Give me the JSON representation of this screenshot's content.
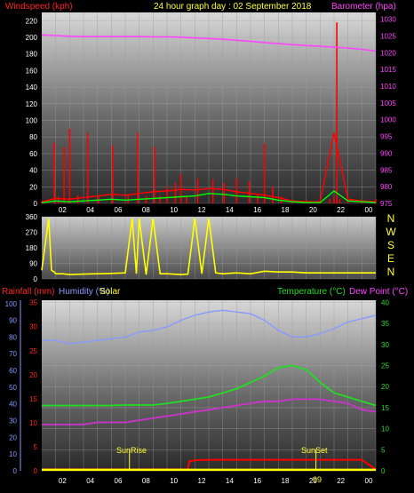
{
  "header": {
    "left_label": "Windspeed (kph)",
    "center_label": "24 hour graph day : 02 September 2018",
    "right_label": "Barometer (hpa)"
  },
  "bottom_header": {
    "rainfall_label": "Rainfall (mm)",
    "humidity_label": "Humidity (%)",
    "solar_label": "Solar",
    "temperature_label": "Temperature (°C)",
    "dewpoint_label": "Dew Point (°C)"
  },
  "compass_letters": [
    "N",
    "W",
    "S",
    "E",
    "N"
  ],
  "annotations": {
    "sunrise": "SunRise",
    "sunset": "SunSet",
    "sunset_mark": "99"
  },
  "colors": {
    "windspeed": "#ff0000",
    "gust": "#ff0000",
    "wind_avg": "#00ff00",
    "barometer": "#ff44ff",
    "direction": "#ffff00",
    "rain": "#ff0000",
    "humidity": "#8899ff",
    "solar": "#ffff00",
    "temperature": "#22dd22",
    "dewpoint": "#cc33cc"
  },
  "chart_data": [
    {
      "type": "line",
      "name": "wind-barometer",
      "x_ticks": [
        "02",
        "04",
        "06",
        "08",
        "10",
        "12",
        "14",
        "16",
        "18",
        "20",
        "22",
        "00"
      ],
      "y_left": {
        "label": "Windspeed (kph)",
        "ticks": [
          0,
          20,
          40,
          60,
          80,
          100,
          120,
          140,
          160,
          180,
          200,
          220
        ],
        "ylim": [
          0,
          230
        ]
      },
      "y_right": {
        "label": "Barometer (hpa)",
        "ticks": [
          975,
          980,
          985,
          990,
          995,
          1000,
          1005,
          1010,
          1015,
          1020,
          1025,
          1030
        ],
        "ylim": [
          975,
          1032
        ]
      },
      "series": [
        {
          "name": "Barometer",
          "x": [
            0,
            1,
            2,
            3,
            4,
            5,
            6,
            7,
            8,
            9,
            10,
            11,
            12,
            13,
            14,
            15,
            16,
            17,
            18,
            19,
            20,
            21,
            22,
            23,
            24
          ],
          "values": [
            1025.3,
            1025.1,
            1024.9,
            1024.8,
            1024.8,
            1024.8,
            1024.8,
            1024.8,
            1024.7,
            1024.7,
            1024.6,
            1024.4,
            1024.2,
            1024.0,
            1023.7,
            1023.4,
            1023.0,
            1022.7,
            1022.4,
            1022.1,
            1021.9,
            1021.6,
            1021.4,
            1021.0,
            1020.5
          ]
        },
        {
          "name": "Gust",
          "x": [
            0,
            0.9,
            1.2,
            1.6,
            2.0,
            2.6,
            3.3,
            4.1,
            5.1,
            6.2,
            6.9,
            7.5,
            8.1,
            8.5,
            9.0,
            9.6,
            10.0,
            10.4,
            11.2,
            12.3,
            13.1,
            14.0,
            14.9,
            15.5,
            16.0,
            16.6,
            17.2,
            18.0,
            19.0,
            20.0,
            20.7,
            21.0,
            21.2,
            21.4,
            22.0,
            23.0,
            24.0
          ],
          "values": [
            3,
            73,
            8,
            68,
            90,
            10,
            85,
            8,
            70,
            10,
            85,
            9,
            68,
            9,
            20,
            25,
            35,
            9,
            30,
            29,
            25,
            30,
            27,
            10,
            72,
            20,
            8,
            3,
            4,
            4,
            5,
            7,
            218,
            5,
            6,
            3,
            5
          ]
        },
        {
          "name": "Average",
          "x": [
            0,
            1,
            2,
            3,
            4,
            5,
            6,
            7,
            8,
            9,
            10,
            11,
            12,
            13,
            14,
            15,
            16,
            17,
            18,
            19,
            20,
            21,
            22,
            23,
            24
          ],
          "values": [
            1,
            3,
            2,
            3,
            4,
            5,
            4,
            5,
            6,
            7,
            8,
            9,
            12,
            11,
            9,
            8,
            7,
            4,
            2,
            1,
            1,
            15,
            3,
            2,
            1
          ]
        },
        {
          "name": "Windspeed",
          "x": [
            0,
            1,
            2,
            3,
            4,
            5,
            6,
            7,
            8,
            9,
            10,
            11,
            12,
            13,
            14,
            15,
            16,
            17,
            18,
            19,
            20,
            21,
            22,
            23,
            24
          ],
          "values": [
            2,
            6,
            5,
            7,
            9,
            11,
            10,
            12,
            14,
            15,
            17,
            16,
            18,
            17,
            14,
            12,
            10,
            7,
            3,
            2,
            2,
            85,
            5,
            3,
            2
          ]
        }
      ]
    },
    {
      "type": "scatter",
      "name": "wind-direction",
      "y_ticks": [
        0,
        90,
        180,
        270,
        360
      ],
      "ylim": [
        0,
        360
      ],
      "series": [
        {
          "name": "Direction",
          "x": [
            0,
            0.5,
            0.7,
            0.9,
            1.0,
            1.5,
            2.0,
            3.0,
            4.0,
            5.0,
            6.0,
            6.5,
            6.8,
            7.0,
            7.5,
            8.0,
            8.5,
            9.0,
            10.0,
            10.5,
            11.0,
            11.5,
            12.0,
            12.5,
            13.0,
            14.0,
            15.0,
            16.0,
            17.0,
            18.0,
            19.0,
            20.0,
            21.0,
            22.0,
            23.0,
            24.0
          ],
          "values": [
            50,
            350,
            50,
            40,
            30,
            30,
            25,
            28,
            30,
            32,
            35,
            350,
            30,
            350,
            25,
            350,
            30,
            30,
            25,
            28,
            350,
            30,
            350,
            35,
            30,
            35,
            30,
            45,
            40,
            40,
            35,
            35,
            35,
            35,
            35,
            35
          ]
        }
      ]
    },
    {
      "type": "line",
      "name": "rain-humidity-temperature",
      "x_ticks": [
        "02",
        "04",
        "06",
        "08",
        "10",
        "12",
        "14",
        "16",
        "18",
        "20",
        "22",
        "00"
      ],
      "y_humidity": {
        "label": "Humidity (%)",
        "ticks": [
          0,
          10,
          20,
          30,
          40,
          50,
          60,
          70,
          80,
          90,
          100
        ],
        "ylim": [
          0,
          102
        ]
      },
      "y_rain": {
        "label": "Rainfall (mm)",
        "ticks": [
          0,
          5,
          10,
          15,
          20,
          25,
          30,
          35
        ],
        "ylim": [
          0,
          35.5
        ]
      },
      "y_temp": {
        "label": "Temperature (°C)",
        "ticks": [
          0,
          5,
          10,
          15,
          20,
          25,
          30,
          35,
          40
        ],
        "ylim": [
          0,
          40.5
        ]
      },
      "series": [
        {
          "name": "Humidity",
          "x": [
            0,
            1,
            2,
            3,
            4,
            5,
            6,
            7,
            8,
            9,
            10,
            11,
            12,
            13,
            14,
            15,
            16,
            17,
            18,
            19,
            20,
            21,
            22,
            23,
            24
          ],
          "values": [
            78,
            78,
            76,
            77,
            78,
            79,
            80,
            83,
            84,
            86,
            90,
            93,
            95,
            96,
            95,
            94,
            90,
            84,
            80,
            80,
            82,
            85,
            89,
            91,
            93
          ]
        },
        {
          "name": "Temperature",
          "x": [
            0,
            1,
            2,
            3,
            4,
            5,
            6,
            7,
            8,
            9,
            10,
            11,
            12,
            13,
            14,
            15,
            16,
            17,
            18,
            19,
            20,
            21,
            22,
            23,
            24
          ],
          "values": [
            15.5,
            15.5,
            15.5,
            15.5,
            15.5,
            15.5,
            15.6,
            15.6,
            15.6,
            16,
            16.5,
            17,
            17.5,
            18.5,
            19.5,
            21,
            22.5,
            24.5,
            25,
            24,
            21,
            18.5,
            17.5,
            16.5,
            15.5
          ]
        },
        {
          "name": "Dew Point",
          "x": [
            0,
            1,
            2,
            3,
            4,
            5,
            6,
            7,
            8,
            9,
            10,
            11,
            12,
            13,
            14,
            15,
            16,
            17,
            18,
            19,
            20,
            21,
            22,
            23,
            24
          ],
          "values": [
            11,
            11,
            11,
            11,
            11.5,
            11.5,
            11.5,
            12,
            12.5,
            13,
            13.5,
            14,
            14.5,
            15,
            15.5,
            16,
            16.5,
            16.5,
            17,
            17,
            17,
            16.5,
            16,
            14.5,
            14
          ]
        },
        {
          "name": "Rainfall",
          "x": [
            0,
            10.5,
            10.6,
            11,
            12,
            13,
            14,
            15,
            16,
            17,
            18,
            19,
            20,
            21,
            22,
            23,
            24
          ],
          "values": [
            0.3,
            0.3,
            2,
            2.2,
            2.3,
            2.3,
            2.3,
            2.3,
            2.3,
            2.3,
            2.3,
            2.3,
            2.3,
            2.3,
            2.3,
            2.3,
            0.3
          ]
        },
        {
          "name": "Solar",
          "x": [
            0,
            24
          ],
          "values": [
            0.2,
            0.2
          ]
        }
      ]
    }
  ]
}
